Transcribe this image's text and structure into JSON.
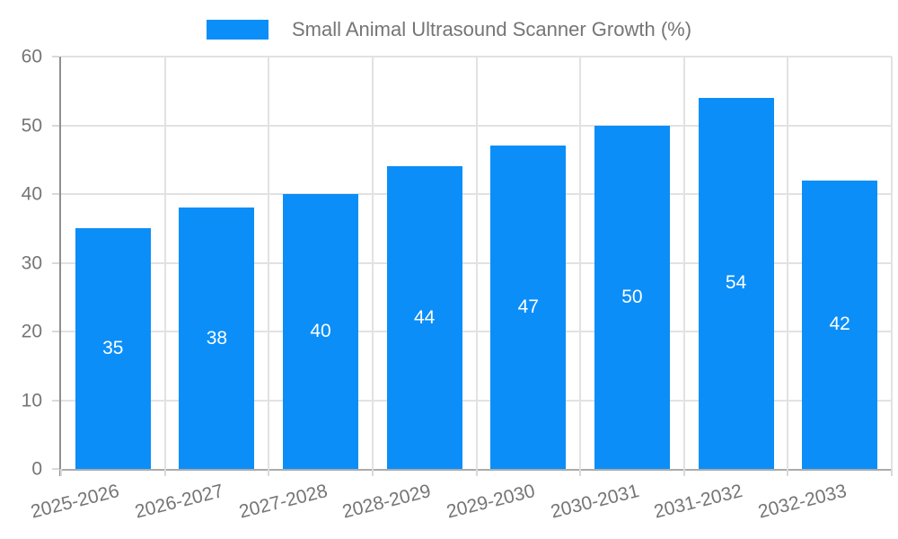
{
  "chart_data": {
    "type": "bar",
    "title": "Small Animal Ultrasound Scanner Growth (%)",
    "legend": {
      "position": "top",
      "label": "Small Animal Ultrasound Scanner Growth (%)"
    },
    "categories": [
      "2025-2026",
      "2026-2027",
      "2027-2028",
      "2028-2029",
      "2029-2030",
      "2030-2031",
      "2031-2032",
      "2032-2033"
    ],
    "values": [
      35,
      38,
      40,
      44,
      47,
      50,
      54,
      42
    ],
    "xlabel": "",
    "ylabel": "",
    "ylim": [
      0,
      60
    ],
    "yticks": [
      0,
      10,
      20,
      30,
      40,
      50,
      60
    ],
    "grid": true,
    "colors": {
      "bar": "#0b8ef8",
      "gridline": "#e2e2e2",
      "y_axis_line": "#8f8f8f",
      "x_axis_line": "#ababab",
      "tick": "#d9d9d9",
      "tick_label": "#757575",
      "value_label": "#ffffff",
      "background": "#ffffff"
    },
    "value_labels": {
      "show": true,
      "position": "center-of-bar"
    }
  }
}
